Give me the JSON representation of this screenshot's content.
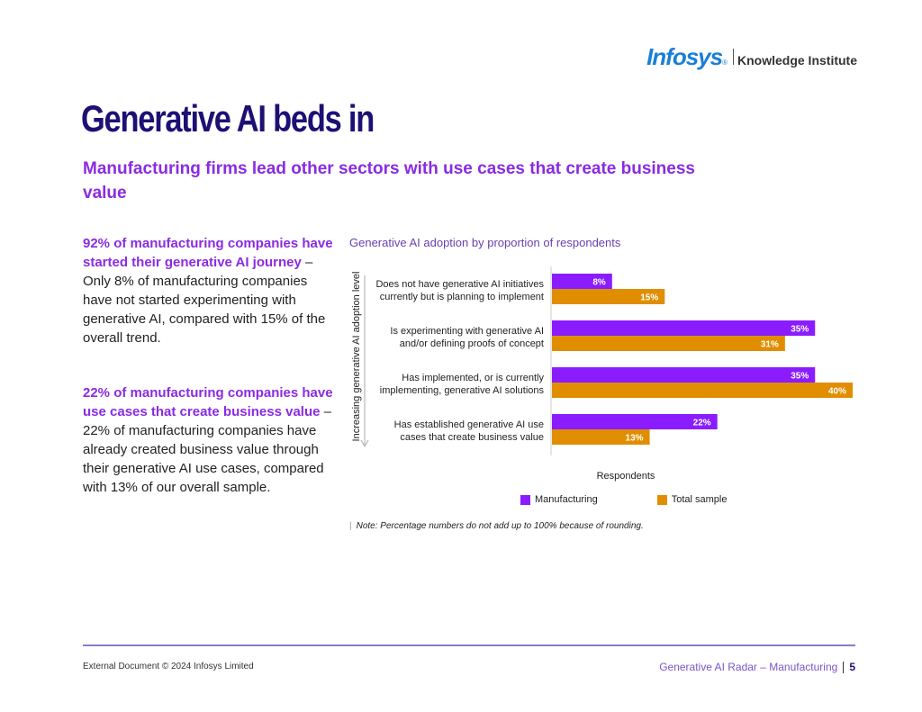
{
  "logo": {
    "brand": "Infosys",
    "reg": "®",
    "sub": "Knowledge Institute"
  },
  "title": "Generative AI beds in",
  "subtitle": "Manufacturing firms lead other sectors with use cases that create business value",
  "paragraphs": [
    {
      "highlight": "92% of manufacturing companies have started their generative AI journey",
      "text": " – Only 8% of manufacturing companies have not started experimenting with generative AI, compared with 15% of the overall trend."
    },
    {
      "highlight": "22% of manufacturing companies have use cases that create business value",
      "text": " – 22% of manufacturing companies have already created business value through their generative AI use cases, compared with 13% of our overall sample."
    }
  ],
  "chart_data": {
    "type": "bar",
    "orientation": "horizontal",
    "title": "Generative AI adoption by proportion of respondents",
    "xlabel": "Respondents",
    "ylabel": "Increasing generative AI adoption level",
    "categories": [
      [
        "Does not have generative AI initiatives",
        "currently but is planning to implement"
      ],
      [
        "Is experimenting with generative AI",
        "and/or defining proofs of concept"
      ],
      [
        "Has implemented, or is currently",
        "implementing, generative AI solutions"
      ],
      [
        "Has established generative AI use",
        "cases that create business value"
      ]
    ],
    "series": [
      {
        "name": "Manufacturing",
        "color": "#8a1cff",
        "values": [
          8,
          35,
          35,
          22
        ]
      },
      {
        "name": "Total sample",
        "color": "#e08e00",
        "values": [
          15,
          31,
          40,
          13
        ]
      }
    ],
    "xlim": [
      0,
      40
    ],
    "value_suffix": "%",
    "legend_position": "bottom",
    "note": "Note: Percentage numbers do not add up to 100% because of rounding."
  },
  "footer": {
    "left": "External Document © 2024 Infosys Limited",
    "right": "Generative AI Radar – Manufacturing",
    "page": "5"
  }
}
